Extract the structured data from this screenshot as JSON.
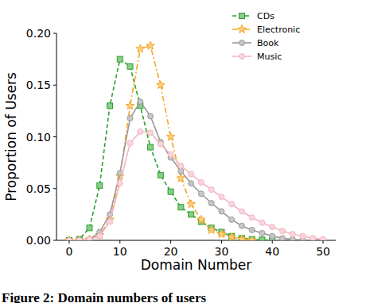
{
  "chart_data": {
    "type": "line",
    "x_label": "Domain Number",
    "y_label": "Proportion of Users",
    "caption": "Figure 2: Domain numbers of users",
    "x": [
      0,
      2,
      4,
      6,
      8,
      10,
      12,
      14,
      16,
      18,
      20,
      22,
      24,
      26,
      28,
      30,
      32,
      34,
      36,
      38,
      40,
      42,
      44,
      46,
      48,
      50
    ],
    "series": [
      {
        "name": "CDs",
        "color": "#2ca02c",
        "marker": "square",
        "line_style": "dashed",
        "values": [
          0,
          0.001,
          0.012,
          0.053,
          0.13,
          0.175,
          0.168,
          0.13,
          0.09,
          0.063,
          0.047,
          0.032,
          0.025,
          0.018,
          0.012,
          0.008,
          0.004,
          0.002,
          0.001,
          0.0005,
          0,
          null,
          null,
          null,
          null,
          null
        ]
      },
      {
        "name": "Electronic",
        "color": "#f5a623",
        "marker": "star",
        "line_style": "dashdot",
        "values": [
          0,
          0,
          0.001,
          0.005,
          0.02,
          0.062,
          0.13,
          0.185,
          0.188,
          0.15,
          0.1,
          0.06,
          0.035,
          0.02,
          0.01,
          0.006,
          0.003,
          0.001,
          0,
          null,
          null,
          null,
          null,
          null,
          null,
          null
        ]
      },
      {
        "name": "Book",
        "color": "#999999",
        "marker": "circle",
        "line_style": "solid",
        "values": [
          0,
          0,
          0.001,
          0.008,
          0.025,
          0.065,
          0.118,
          0.134,
          0.12,
          0.095,
          0.08,
          0.067,
          0.055,
          0.045,
          0.036,
          0.028,
          0.02,
          0.014,
          0.01,
          0.007,
          0.004,
          0.002,
          0.001,
          0.0005,
          null,
          null
        ]
      },
      {
        "name": "Music",
        "color": "#f4b3c2",
        "marker": "circle",
        "line_style": "solid",
        "values": [
          0,
          0,
          0.001,
          0.004,
          0.018,
          0.055,
          0.094,
          0.105,
          0.104,
          0.093,
          0.083,
          0.072,
          0.064,
          0.056,
          0.049,
          0.042,
          0.035,
          0.028,
          0.022,
          0.017,
          0.013,
          0.009,
          0.006,
          0.004,
          0.002,
          0.001
        ]
      }
    ],
    "xlim": [
      -2.5,
      52.5
    ],
    "ylim": [
      0,
      0.2
    ],
    "xticks": [
      0,
      10,
      20,
      30,
      40,
      50
    ],
    "yticks": [
      {
        "value": 0,
        "label": "0.00"
      },
      {
        "value": 0.05,
        "label": "0.05"
      },
      {
        "value": 0.1,
        "label": "0.10"
      },
      {
        "value": 0.15,
        "label": "0.15"
      },
      {
        "value": 0.2,
        "label": "0.20"
      }
    ],
    "legend": "upper right",
    "grid": false
  }
}
